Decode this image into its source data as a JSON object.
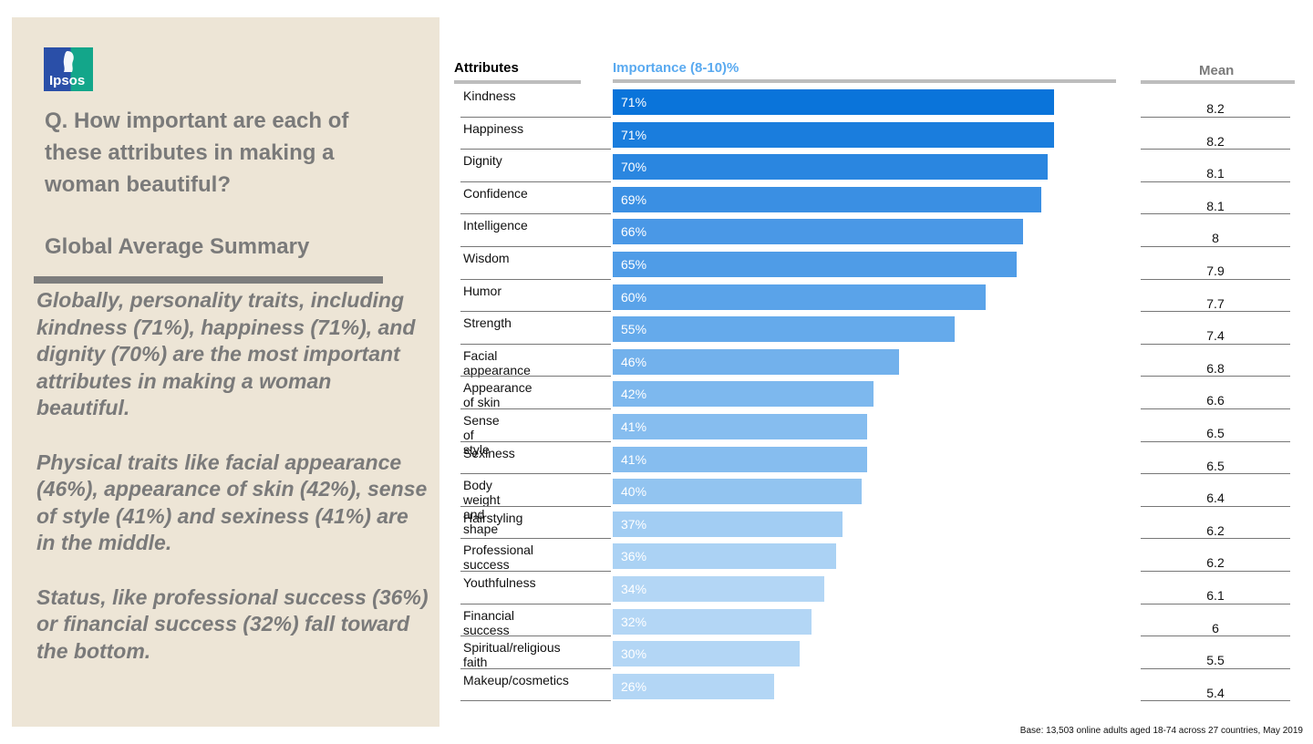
{
  "brand": {
    "logo_text": "Ipsos"
  },
  "question": "Q. How important are each of these attributes in making a woman beautiful?",
  "summary_title": "Global Average Summary",
  "summary_paragraphs": [
    "Globally, personality traits, including kindness (71%), happiness (71%), and dignity (70%) are the most important attributes in making a woman beautiful.",
    "Physical traits like facial appearance (46%), appearance of skin (42%), sense of style (41%) and sexiness (41%) are in the middle.",
    "Status, like professional success (36%) or financial success (32%) fall toward the bottom."
  ],
  "chart_data": {
    "type": "bar",
    "orientation": "horizontal",
    "title": "",
    "xlabel": "Importance (8-10)%",
    "ylabel": "Attributes",
    "mean_header": "Mean",
    "xlim": [
      0,
      100
    ],
    "categories": [
      "Kindness",
      "Happiness",
      "Dignity",
      "Confidence",
      "Intelligence",
      "Wisdom",
      "Humor",
      "Strength",
      "Facial appearance",
      "Appearance of skin",
      "Sense of style",
      "Sexiness",
      "Body weight and shape",
      "Hairstyling",
      "Professional success",
      "Youthfulness",
      "Financial success",
      "Spiritual/religious faith",
      "Makeup/cosmetics"
    ],
    "values": [
      71,
      71,
      70,
      69,
      66,
      65,
      60,
      55,
      46,
      42,
      41,
      41,
      40,
      37,
      36,
      34,
      32,
      30,
      26
    ],
    "value_labels": [
      "71%",
      "71%",
      "70%",
      "69%",
      "66%",
      "65%",
      "60%",
      "55%",
      "46%",
      "42%",
      "41%",
      "41%",
      "40%",
      "37%",
      "36%",
      "34%",
      "32%",
      "30%",
      "26%"
    ],
    "mean_values": [
      "8.2",
      "8.2",
      "8.1",
      "8.1",
      "8",
      "7.9",
      "7.7",
      "7.4",
      "6.8",
      "6.6",
      "6.5",
      "6.5",
      "6.4",
      "6.2",
      "6.2",
      "6.1",
      "6",
      "5.5",
      "5.4"
    ],
    "colors": [
      "#0a74da",
      "#1a7ddd",
      "#2a86e0",
      "#3a8fe3",
      "#4a98e6",
      "#4f9ce7",
      "#5aa3e9",
      "#65aaeb",
      "#72b1ec",
      "#7db8ee",
      "#86bdef",
      "#86bdef",
      "#92c4f0",
      "#a2cdf3",
      "#abd2f4",
      "#b3d6f5",
      "#b3d6f5",
      "#b3d6f5",
      "#b3d6f5"
    ]
  },
  "footnote": "Base: 13,503 online adults aged 18-74 across 27 countries,  May 2019"
}
